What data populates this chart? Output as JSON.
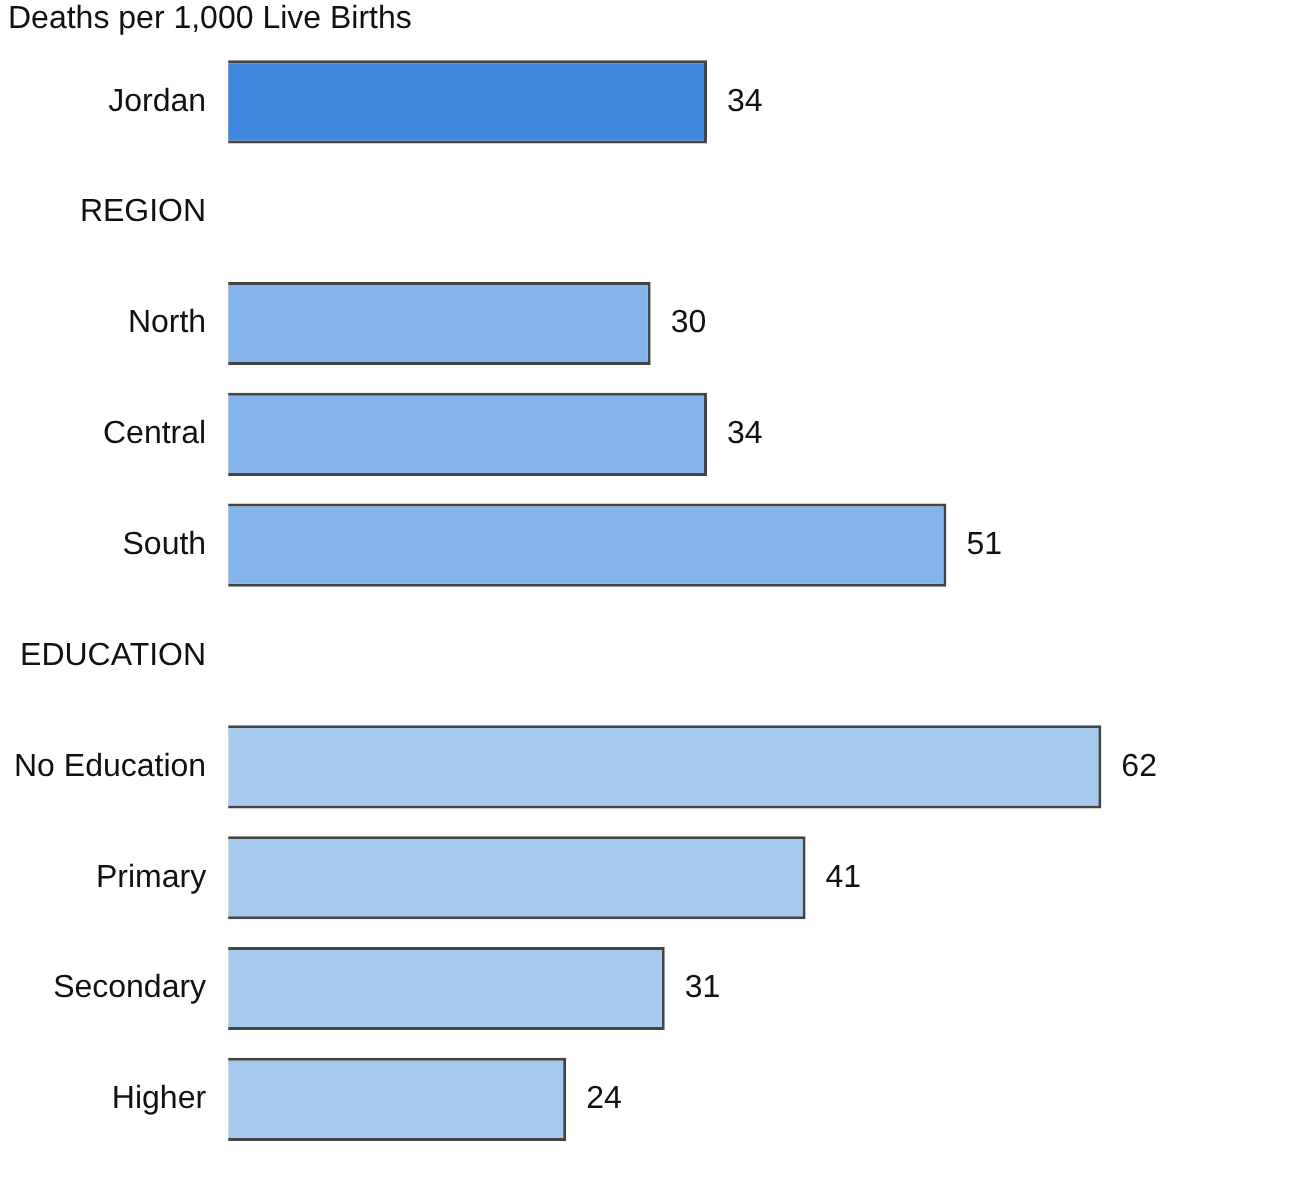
{
  "chart_data": {
    "type": "bar",
    "orientation": "horizontal",
    "title": "Deaths per 1,000 Live Births",
    "categories": [
      "Jordan",
      "REGION",
      "North",
      "Central",
      "South",
      "EDUCATION",
      "No Education",
      "Primary",
      "Secondary",
      "Higher"
    ],
    "values": [
      34,
      null,
      30,
      34,
      51,
      null,
      62,
      41,
      31,
      24
    ],
    "colors": [
      "#3f86dc",
      "#ffffff",
      "#85b4ea",
      "#85b4ea",
      "#85b4ea",
      "#ffffff",
      "#a6c9ee",
      "#a6c9ee",
      "#a6c9ee",
      "#a6c9ee"
    ],
    "data_labels": true,
    "tick_labels": "y",
    "legend": false
  }
}
